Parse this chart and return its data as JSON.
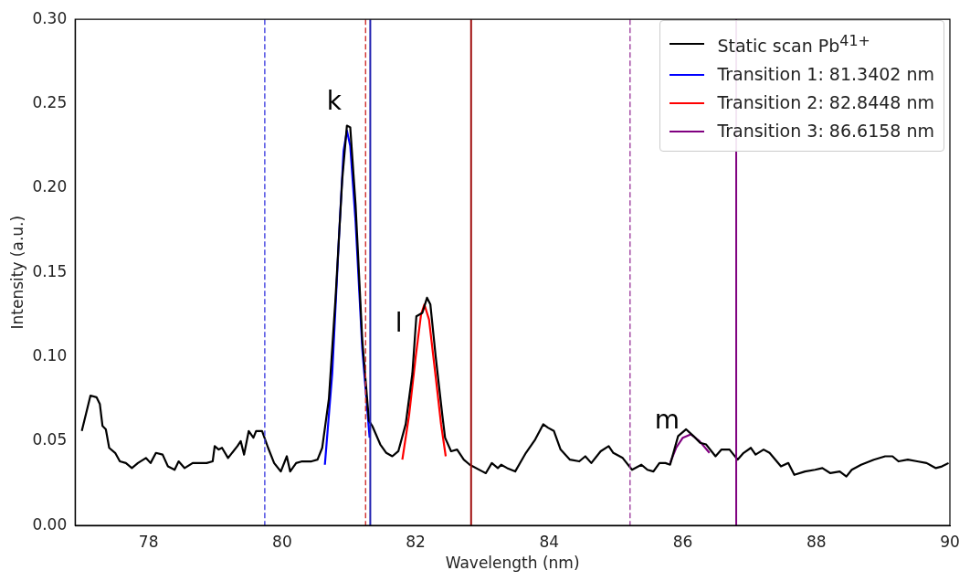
{
  "chart_data": {
    "type": "line",
    "xlabel": "Wavelength (nm)",
    "ylabel": "Intensity (a.u.)",
    "xlim": [
      76.9,
      90
    ],
    "xticks": [
      78,
      80,
      82,
      84,
      86,
      88,
      90
    ],
    "ylim": [
      0,
      0.3
    ],
    "yticks": [
      {
        "value": 0,
        "label": "0.00"
      },
      {
        "value": 0.05,
        "label": "0.05"
      },
      {
        "value": 0.1,
        "label": "0.10"
      },
      {
        "value": 0.15,
        "label": "0.15"
      },
      {
        "value": 0.2,
        "label": "0.20"
      },
      {
        "value": 0.25,
        "label": "0.25"
      },
      {
        "value": 0.3,
        "label": "0.30"
      }
    ],
    "grid": false,
    "legend": "top right",
    "series": [
      {
        "name": "Static scan Pb$^{41+}$",
        "color": "#000000",
        "x": [
          77.0,
          77.13,
          77.22,
          77.27,
          77.31,
          77.36,
          77.41,
          77.5,
          77.57,
          77.66,
          77.75,
          77.84,
          77.96,
          78.03,
          78.11,
          78.21,
          78.29,
          78.39,
          78.45,
          78.54,
          78.66,
          78.77,
          78.87,
          78.96,
          78.99,
          79.05,
          79.1,
          79.19,
          79.33,
          79.38,
          79.43,
          79.5,
          79.57,
          79.61,
          79.7,
          79.79,
          79.88,
          79.98,
          80.07,
          80.12,
          80.21,
          80.3,
          80.44,
          80.53,
          80.6,
          80.7,
          80.8,
          80.9,
          80.97,
          81.02,
          81.1,
          81.2,
          81.3,
          81.35,
          81.47,
          81.56,
          81.65,
          81.74,
          81.85,
          81.95,
          82.01,
          82.1,
          82.17,
          82.22,
          82.3,
          82.4,
          82.44,
          82.53,
          82.62,
          82.72,
          82.81,
          83.0,
          83.05,
          83.14,
          83.23,
          83.28,
          83.37,
          83.49,
          83.65,
          83.79,
          83.91,
          83.98,
          84.07,
          84.17,
          84.31,
          84.45,
          84.54,
          84.63,
          84.77,
          84.89,
          84.96,
          85.1,
          85.24,
          85.38,
          85.47,
          85.56,
          85.65,
          85.74,
          85.81,
          85.93,
          86.05,
          86.16,
          86.26,
          86.35,
          86.49,
          86.58,
          86.7,
          86.82,
          86.91,
          87.02,
          87.09,
          87.21,
          87.3,
          87.47,
          87.58,
          87.67,
          87.83,
          87.98,
          88.09,
          88.21,
          88.35,
          88.45,
          88.53,
          88.67,
          88.86,
          89.03,
          89.14,
          89.23,
          89.37,
          89.51,
          89.65,
          89.79,
          89.88,
          89.98
        ],
        "values": [
          0.056,
          0.077,
          0.076,
          0.072,
          0.059,
          0.057,
          0.046,
          0.043,
          0.038,
          0.037,
          0.034,
          0.037,
          0.04,
          0.037,
          0.043,
          0.042,
          0.035,
          0.033,
          0.038,
          0.034,
          0.037,
          0.037,
          0.037,
          0.038,
          0.047,
          0.045,
          0.046,
          0.04,
          0.047,
          0.05,
          0.042,
          0.056,
          0.052,
          0.056,
          0.056,
          0.046,
          0.037,
          0.032,
          0.041,
          0.032,
          0.037,
          0.038,
          0.038,
          0.039,
          0.046,
          0.075,
          0.135,
          0.205,
          0.237,
          0.236,
          0.19,
          0.11,
          0.062,
          0.059,
          0.048,
          0.043,
          0.041,
          0.044,
          0.06,
          0.09,
          0.124,
          0.126,
          0.135,
          0.131,
          0.1,
          0.065,
          0.052,
          0.044,
          0.045,
          0.039,
          0.036,
          0.032,
          0.031,
          0.037,
          0.034,
          0.036,
          0.034,
          0.032,
          0.043,
          0.051,
          0.06,
          0.058,
          0.056,
          0.045,
          0.039,
          0.038,
          0.041,
          0.037,
          0.044,
          0.047,
          0.043,
          0.04,
          0.033,
          0.036,
          0.033,
          0.032,
          0.037,
          0.037,
          0.036,
          0.053,
          0.057,
          0.053,
          0.049,
          0.048,
          0.041,
          0.045,
          0.045,
          0.039,
          0.043,
          0.046,
          0.042,
          0.045,
          0.043,
          0.035,
          0.037,
          0.03,
          0.032,
          0.033,
          0.034,
          0.031,
          0.032,
          0.029,
          0.033,
          0.036,
          0.039,
          0.041,
          0.041,
          0.038,
          0.039,
          0.038,
          0.037,
          0.034,
          0.035,
          0.037
        ]
      },
      {
        "name": "Transition 1: 81.3402 nm",
        "color": "#0000ff",
        "x": [
          80.64,
          80.75,
          80.85,
          80.92,
          80.97,
          81.02,
          81.1,
          81.2,
          81.31
        ],
        "values": [
          0.036,
          0.09,
          0.17,
          0.222,
          0.234,
          0.225,
          0.18,
          0.105,
          0.052
        ]
      },
      {
        "name": "Transition 2: 82.8448 nm",
        "color": "#ff0000",
        "x": [
          81.8,
          81.9,
          82.0,
          82.08,
          82.13,
          82.2,
          82.3,
          82.38,
          82.45
        ],
        "values": [
          0.039,
          0.065,
          0.1,
          0.125,
          0.131,
          0.122,
          0.088,
          0.06,
          0.041
        ]
      },
      {
        "name": "Transition 3: 86.6158 nm",
        "color": "#800080",
        "x": [
          85.81,
          85.9,
          86.0,
          86.12,
          86.25,
          86.4
        ],
        "values": [
          0.037,
          0.046,
          0.052,
          0.054,
          0.05,
          0.043
        ]
      }
    ],
    "ref_lines": [
      {
        "axis": "x",
        "value": 79.74,
        "color": "#4040e0",
        "line_style": "dashed"
      },
      {
        "axis": "x",
        "value": 81.25,
        "color": "#d03030",
        "line_style": "dashed"
      },
      {
        "axis": "x",
        "value": 81.32,
        "color": "#2020b0",
        "line_style": "solid"
      },
      {
        "axis": "x",
        "value": 82.83,
        "color": "#a01010",
        "line_style": "solid"
      },
      {
        "axis": "x",
        "value": 85.21,
        "color": "#a040a0",
        "line_style": "dashed"
      },
      {
        "axis": "x",
        "value": 86.8,
        "color": "#800080",
        "line_style": "solid"
      }
    ],
    "annotations": [
      "k",
      "l",
      "m"
    ]
  }
}
